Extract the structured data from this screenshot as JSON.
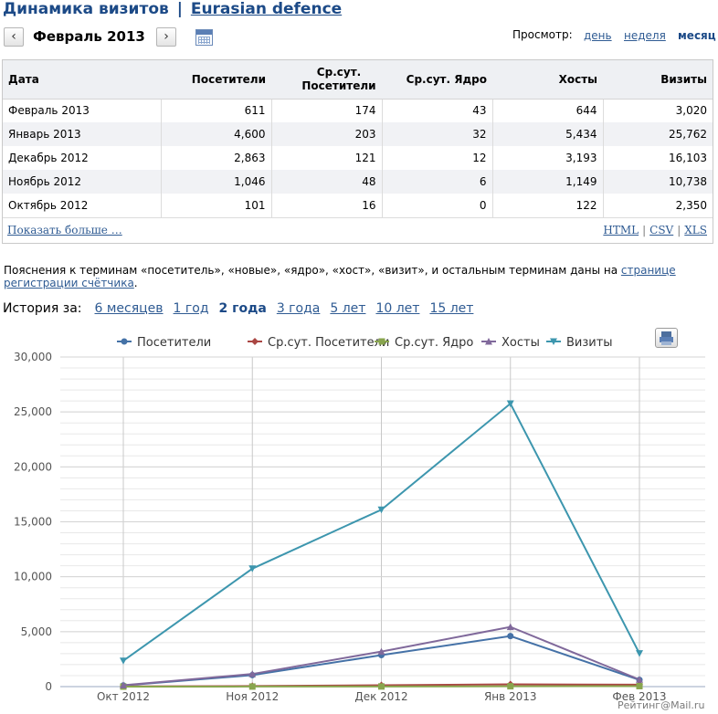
{
  "header": {
    "title": "Динамика визитов",
    "separator": "|",
    "site": "Eurasian defence"
  },
  "nav": {
    "prev_label": "‹",
    "next_label": "›",
    "month": "Февраль 2013",
    "view_label": "Просмотр:",
    "view_day": "день",
    "view_week": "неделя",
    "view_month": "месяц"
  },
  "table": {
    "headers": [
      "Дата",
      "Посетители",
      "Ср.сут. Посетители",
      "Ср.сут. Ядро",
      "Хосты",
      "Визиты"
    ],
    "rows": [
      [
        "Февраль 2013",
        "611",
        "174",
        "43",
        "644",
        "3,020"
      ],
      [
        "Январь 2013",
        "4,600",
        "203",
        "32",
        "5,434",
        "25,762"
      ],
      [
        "Декабрь 2012",
        "2,863",
        "121",
        "12",
        "3,193",
        "16,103"
      ],
      [
        "Ноябрь 2012",
        "1,046",
        "48",
        "6",
        "1,149",
        "10,738"
      ],
      [
        "Октябрь 2012",
        "101",
        "16",
        "0",
        "122",
        "2,350"
      ]
    ],
    "more": "Показать больше …",
    "export_html": "HTML",
    "export_csv": "CSV",
    "export_xls": "XLS",
    "export_sep": "|"
  },
  "explain": {
    "text": "Пояснения к терминам «посетитель», «новые», «ядро», «хост», «визит», и остальным терминам даны на ",
    "link": "странице регистрации счётчика",
    "end": "."
  },
  "history": {
    "label": "История за:",
    "options": [
      "6 месяцев",
      "1 год",
      "2 года",
      "3 года",
      "5 лет",
      "10 лет",
      "15 лет"
    ],
    "active_index": 2
  },
  "chart_data": {
    "type": "line",
    "categories": [
      "Окт 2012",
      "Ноя 2012",
      "Дек 2012",
      "Янв 2013",
      "Фев 2013"
    ],
    "ylim": [
      0,
      30000
    ],
    "yticks": [
      0,
      5000,
      10000,
      15000,
      20000,
      25000,
      30000
    ],
    "ytick_labels": [
      "0",
      "5,000",
      "10,000",
      "15,000",
      "20,000",
      "25,000",
      "30,000"
    ],
    "legend_position": "top",
    "grid": true,
    "series": [
      {
        "name": "Посетители",
        "color": "#4572a7",
        "marker": "circle",
        "values": [
          101,
          1046,
          2863,
          4600,
          611
        ]
      },
      {
        "name": "Ср.сут. Посетители",
        "color": "#aa4643",
        "marker": "diamond",
        "values": [
          16,
          48,
          121,
          203,
          174
        ]
      },
      {
        "name": "Ср.сут. Ядро",
        "color": "#89a54e",
        "marker": "square",
        "values": [
          0,
          6,
          12,
          32,
          43
        ]
      },
      {
        "name": "Хосты",
        "color": "#80699b",
        "marker": "triangle",
        "values": [
          122,
          1149,
          3193,
          5434,
          644
        ]
      },
      {
        "name": "Визиты",
        "color": "#3d96ae",
        "marker": "triangle-down",
        "values": [
          2350,
          10738,
          16103,
          25762,
          3020
        ]
      }
    ]
  },
  "footer": {
    "credit": "Рейтинг@Mail.ru"
  },
  "icons": {
    "calendar": "calendar-icon",
    "print": "print-icon"
  }
}
